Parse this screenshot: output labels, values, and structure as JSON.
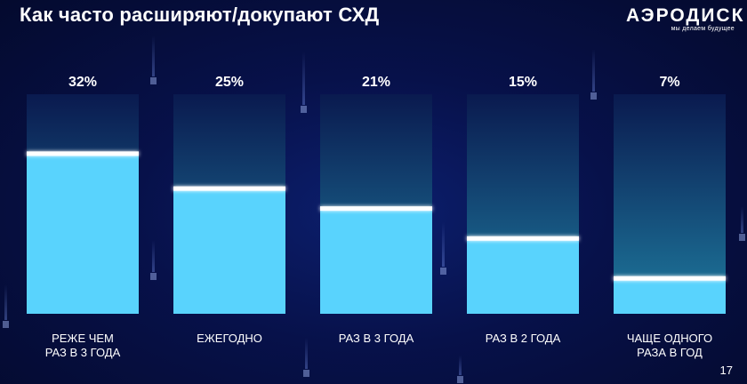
{
  "title": "Как часто расширяют/докупают СХД",
  "logo": {
    "word": "АЭРОДИСК",
    "tagline": "мы делаем будущее"
  },
  "page_number": "17",
  "colors": {
    "fill": "#59d3fd",
    "track_top": "#0a1a4f",
    "track_bottom": "#1e7a9e",
    "marker": "#ffffff"
  },
  "chart_data": {
    "type": "bar",
    "title": "Как часто расширяют/докупают СХД",
    "categories": [
      [
        "РЕЖЕ ЧЕМ",
        "РАЗ В 3 ГОДА"
      ],
      [
        "ЕЖЕГОДНО"
      ],
      [
        "РАЗ В 3 ГОДА"
      ],
      [
        "РАЗ В 2 ГОДА"
      ],
      [
        "ЧАЩЕ ОДНОГО",
        "РАЗА В ГОД"
      ]
    ],
    "values": [
      32,
      25,
      21,
      15,
      7
    ],
    "value_labels": [
      "32%",
      "25%",
      "21%",
      "15%",
      "7%"
    ],
    "unit": "%",
    "ylim": [
      0,
      44
    ],
    "grid": false,
    "legend": "none"
  }
}
